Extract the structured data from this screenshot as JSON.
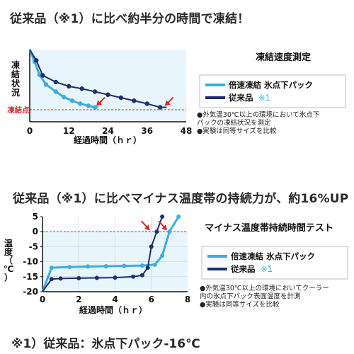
{
  "page": {
    "headline_1": "従来品（※1）に比べ約半分の時間で凍結！",
    "headline_2": "従来品（※1）に比べマイナス温度帯の持続力が、約16%UP",
    "footnote": "※1）従来品：氷点下パック-16℃"
  },
  "chart_data": [
    {
      "type": "line",
      "title": "凍結速度測定",
      "xlabel": "経過時間（ｈｒ）",
      "ylabel": "凍結状況",
      "freeze_label": "凍結点",
      "xlim": [
        0,
        48
      ],
      "xticks": [
        "0",
        "12",
        "24",
        "36",
        "48"
      ],
      "series": [
        {
          "name": "倍速凍結 氷点下パック",
          "color": "#3aaee0",
          "x": [
            0,
            1.5,
            3,
            5,
            8,
            10.5,
            13,
            15.5,
            18,
            20,
            21
          ],
          "y": [
            1.0,
            0.8,
            0.58,
            0.42,
            0.3,
            0.21,
            0.15,
            0.1,
            0.065,
            0.04,
            0.04
          ]
        },
        {
          "name": "従来品",
          "name_suffix": "※1",
          "color": "#1c2f6e",
          "x": [
            0,
            2,
            4,
            8,
            12,
            16,
            20,
            24,
            28,
            32,
            36,
            40,
            42
          ],
          "y": [
            1.0,
            0.82,
            0.57,
            0.46,
            0.39,
            0.35,
            0.3,
            0.25,
            0.2,
            0.15,
            0.1,
            0.04,
            0.04
          ]
        }
      ],
      "arrow_marks": [
        {
          "x": 20,
          "y": 0.04
        },
        {
          "x": 41,
          "y": 0.04
        }
      ],
      "notes": [
        "●外気温30℃以上の環境において氷点下",
        "パックの凍結状況を測定",
        "●実験は同等サイズを比較"
      ]
    },
    {
      "type": "line",
      "title": "マイナス温度帯持続時間テスト",
      "xlabel": "経過時間（ｈｒ）",
      "ylabel": "温度（℃）",
      "xlim": [
        0,
        8
      ],
      "ylim": [
        -20,
        5
      ],
      "xticks": [
        "0",
        "2",
        "4",
        "6",
        "8"
      ],
      "yticks": [
        "5",
        "0",
        "-5",
        "-10",
        "-15",
        "-20"
      ],
      "series": [
        {
          "name": "倍速凍結 氷点下パック",
          "color": "#3aaee0",
          "x": [
            0,
            0.5,
            1.5,
            2.5,
            3.5,
            4.5,
            5.5,
            6.2,
            6.6,
            7.0,
            7.5
          ],
          "y": [
            -20,
            -12,
            -11.8,
            -11.6,
            -11.5,
            -11.4,
            -11.3,
            -11,
            -8,
            0,
            5
          ]
        },
        {
          "name": "従来品",
          "name_suffix": "※1",
          "color": "#1c2f6e",
          "x": [
            0,
            0.5,
            1.0,
            2.0,
            3.0,
            4.0,
            5.0,
            5.5,
            5.8,
            6.0,
            6.3,
            6.6
          ],
          "y": [
            -20,
            -15.8,
            -15.6,
            -15.5,
            -15.4,
            -15.3,
            -15,
            -14.5,
            -12,
            -5,
            0,
            5
          ]
        }
      ],
      "arrow_marks": [
        {
          "x": 6.0,
          "y": 0
        },
        {
          "x": 6.95,
          "y": 0
        }
      ],
      "notes": [
        "●外気温30℃以上の環境においてクーラー",
        "内の氷点下パック表面温度を計測",
        "●実験は同等サイズを比較"
      ]
    }
  ],
  "colors": {
    "accent_blue": "#3aaee0",
    "navy": "#1c2f6e",
    "plot_fill": "#e9f5fc",
    "freeze_red": "#d9262b",
    "arrow_red": "#d9262b"
  }
}
